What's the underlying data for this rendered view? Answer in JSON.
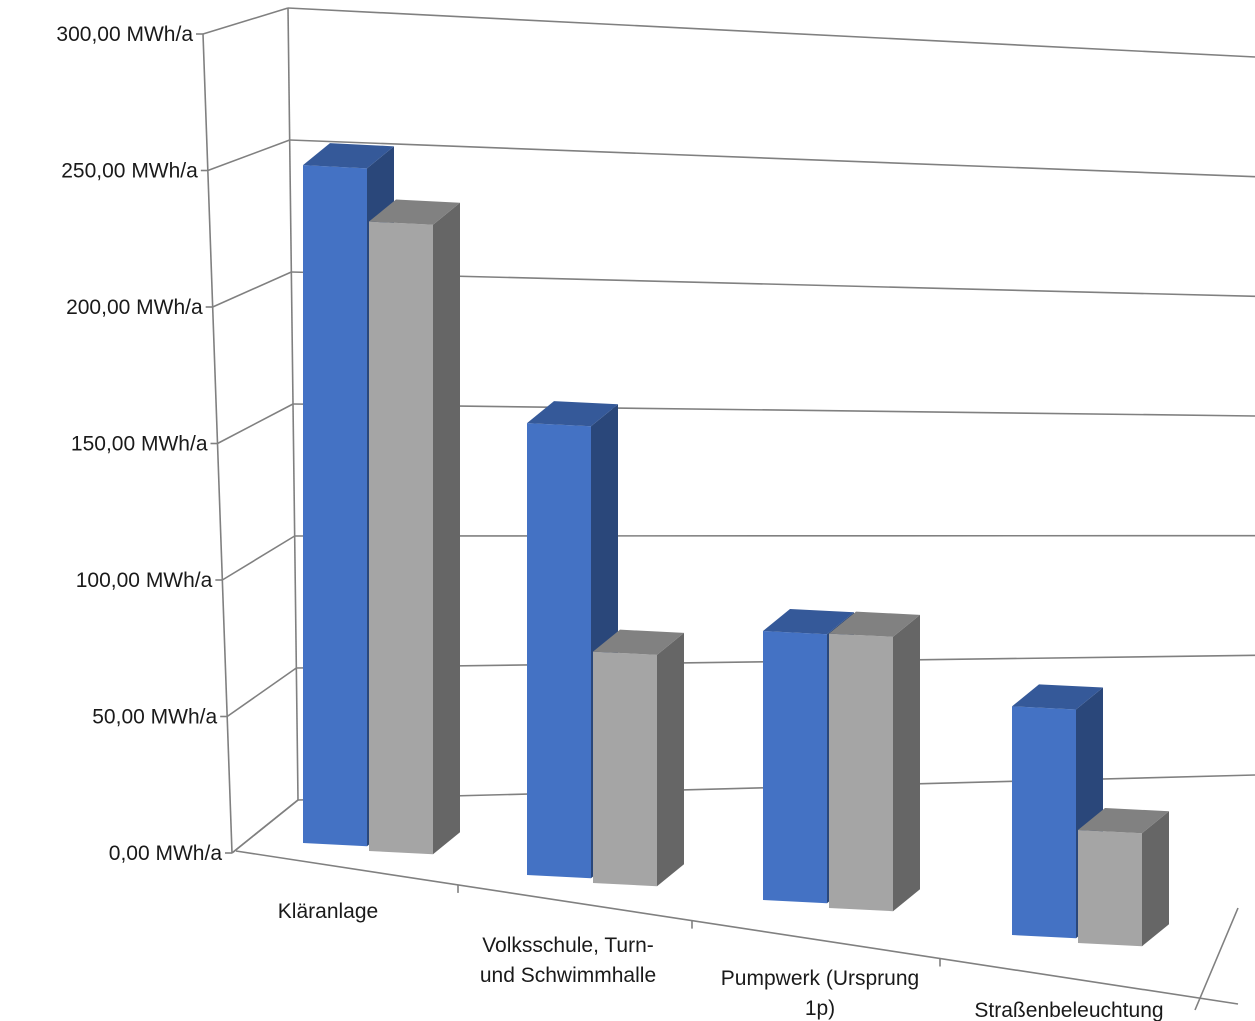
{
  "chart_data": {
    "type": "bar",
    "variant": "3d-clustered-column",
    "title": "",
    "xlabel": "",
    "ylabel": "",
    "ylim": [
      0,
      300
    ],
    "yticks": [
      "0,00 MWh/a",
      "50,00 MWh/a",
      "100,00 MWh/a",
      "150,00 MWh/a",
      "200,00 MWh/a",
      "250,00 MWh/a",
      "300,00 MWh/a"
    ],
    "categories": [
      [
        "Kläranlage"
      ],
      [
        "Volksschule, Turn-",
        "und Schwimmhalle"
      ],
      [
        "Pumpwerk (Ursprung",
        "1p)"
      ],
      [
        "Straßenbeleuchtung"
      ]
    ],
    "series": [
      {
        "values": [
          252,
          168,
          100,
          85
        ],
        "color": "#4472c4"
      },
      {
        "values": [
          234,
          86,
          102,
          42
        ],
        "color": "#a5a5a5"
      }
    ],
    "grid": true,
    "legend": "none"
  }
}
